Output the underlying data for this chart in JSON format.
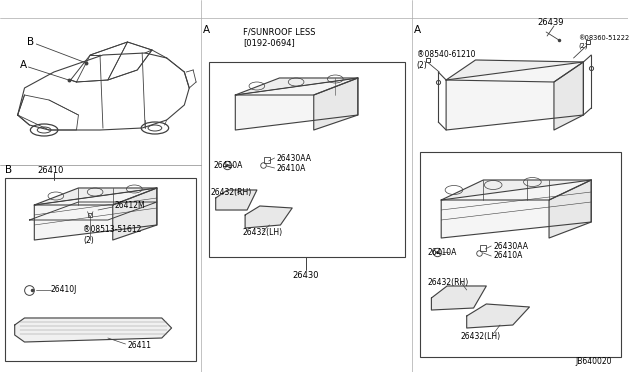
{
  "bg_color": "#ffffff",
  "lc": "#404040",
  "tc": "#000000",
  "fs": 5.5,
  "fm": 6.0,
  "fl": 7.5,
  "diagram_id": "JB640020",
  "sunroof_label": "F/SUNROOF LESS\n[0192-0694]",
  "part_26410": "26410",
  "part_26411": "26411",
  "part_26412M": "26412M",
  "part_26410A": "26410A",
  "part_26410J": "26410J",
  "part_26430": "26430",
  "part_26430AA": "26430AA",
  "part_26432RH": "26432(RH)",
  "part_26432LH": "26432(LH)",
  "part_26439": "26439",
  "part_08540": "®08540-61210\n(2)",
  "part_08360": "®08360-51222\n(2)",
  "part_08513": "®08513-51612\n(2)"
}
